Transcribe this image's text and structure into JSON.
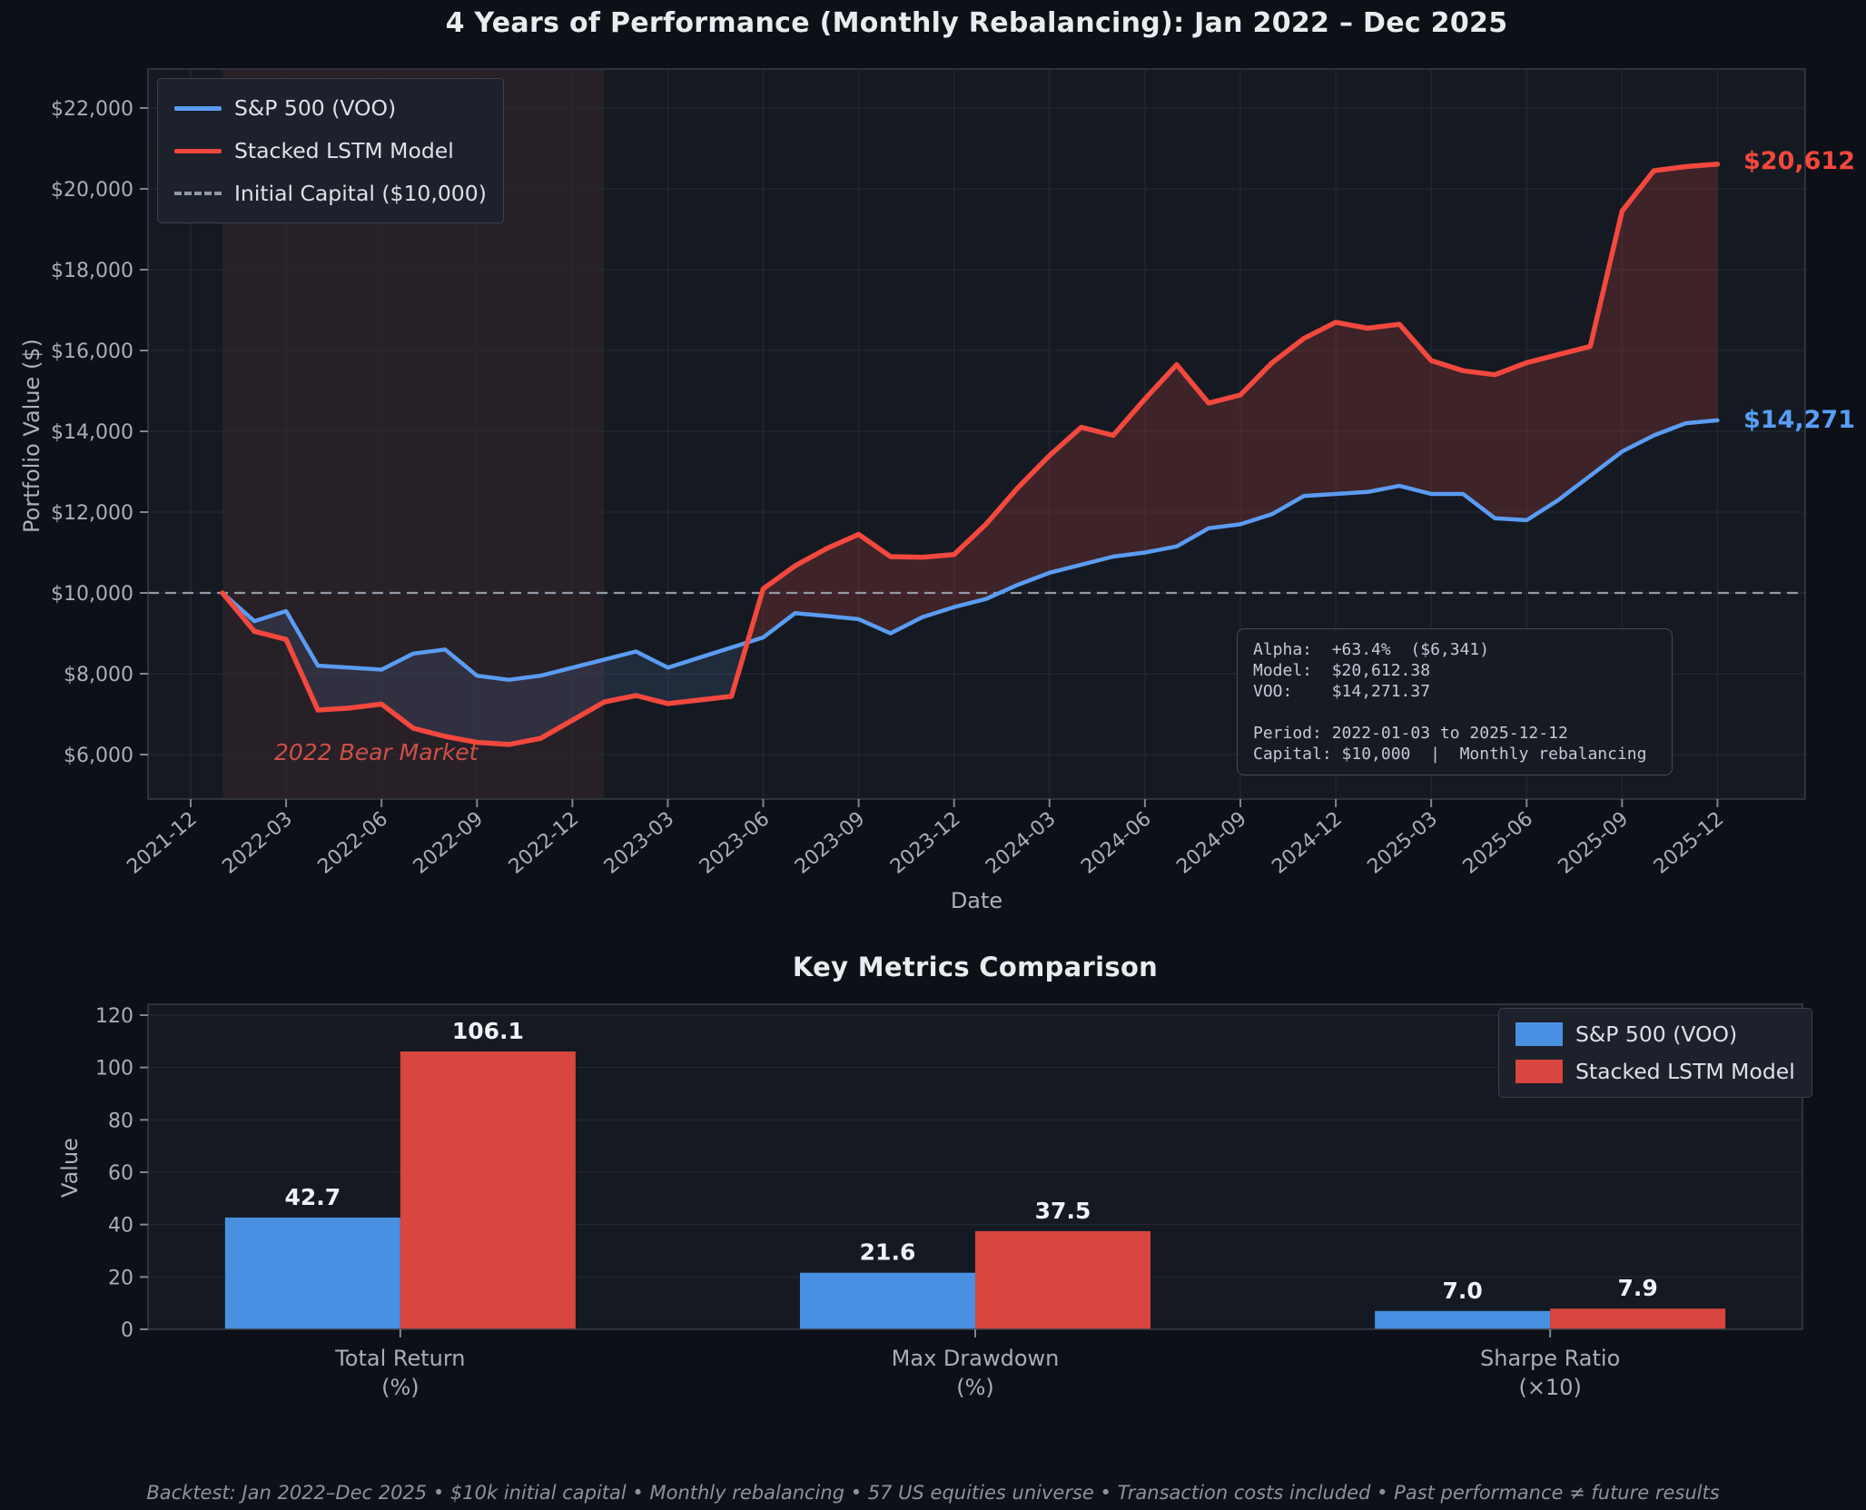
{
  "ui": {
    "performance": {
      "title": "4 Years of Performance (Monthly Rebalancing): Jan 2022 – Dec 2025",
      "xlabel": "Date",
      "ylabel": "Portfolio Value ($)",
      "end_label_model": "$20,612",
      "end_label_voo": "$14,271",
      "annotation": "2022 Bear Market",
      "info_box": {
        "lines": [
          "Alpha:  +63.4%  ($6,341)",
          "Model:  $20,612.38",
          "VOO:    $14,271.37",
          "",
          "Period: 2022-01-03 to 2025-12-12",
          "Capital: $10,000  |  Monthly rebalancing"
        ]
      }
    },
    "metrics": {
      "title": "Key Metrics Comparison",
      "ylabel": "Value"
    },
    "footer": "Backtest: Jan 2022–Dec 2025 • $10k initial capital • Monthly rebalancing • 57 US equities universe • Transaction costs included • Past performance ≠ future results"
  },
  "colors": {
    "figure_bg": "#0d1016",
    "axes_bg": "#151a22",
    "grid": "#252a34",
    "spine": "#363c47",
    "tick_text": "#a8aeb8",
    "voo_blue": "#5b9cf3",
    "model_red": "#f2483e",
    "bar_blue": "#4a90e2",
    "bar_red": "#d9453f",
    "reference_gray": "#939aa6",
    "end_label_red": "#f4483d",
    "end_label_blue": "#57a0f5",
    "fill_model_above": "rgba(232,74,66,0.20)",
    "fill_voo_above": "rgba(101,143,214,0.15)",
    "bear_band": "rgba(219,88,88,0.10)",
    "value_label": "#f0f2f5"
  },
  "chart_data": [
    {
      "type": "line",
      "title": "4 Years of Performance (Monthly Rebalancing): Jan 2022 – Dec 2025",
      "xlabel": "Date",
      "ylabel": "Portfolio Value ($)",
      "x": [
        "2022-01",
        "2022-02",
        "2022-03",
        "2022-04",
        "2022-05",
        "2022-06",
        "2022-07",
        "2022-08",
        "2022-09",
        "2022-10",
        "2022-11",
        "2022-12",
        "2023-01",
        "2023-02",
        "2023-03",
        "2023-04",
        "2023-05",
        "2023-06",
        "2023-07",
        "2023-08",
        "2023-09",
        "2023-10",
        "2023-11",
        "2023-12",
        "2024-01",
        "2024-02",
        "2024-03",
        "2024-04",
        "2024-05",
        "2024-06",
        "2024-07",
        "2024-08",
        "2024-09",
        "2024-10",
        "2024-11",
        "2024-12",
        "2025-01",
        "2025-02",
        "2025-03",
        "2025-04",
        "2025-05",
        "2025-06",
        "2025-07",
        "2025-08",
        "2025-09",
        "2025-10",
        "2025-11",
        "2025-12"
      ],
      "series": [
        {
          "name": "S&P 500 (VOO)",
          "color": "#5b9cf3",
          "final_value": 14271.37,
          "values": [
            10000,
            9300,
            9550,
            8200,
            8150,
            8100,
            8500,
            8600,
            7950,
            7850,
            7950,
            8150,
            8350,
            8550,
            8150,
            8400,
            8650,
            8900,
            9500,
            9430,
            9350,
            9000,
            9400,
            9650,
            9850,
            10200,
            10500,
            10700,
            10900,
            11000,
            11150,
            11600,
            11700,
            11950,
            12400,
            12450,
            12500,
            12650,
            12450,
            12450,
            11850,
            11800,
            12300,
            12900,
            13500,
            13900,
            14200,
            14271
          ]
        },
        {
          "name": "Stacked LSTM Model",
          "color": "#f2483e",
          "final_value": 20612.38,
          "values": [
            10000,
            9050,
            8850,
            7100,
            7150,
            7250,
            6650,
            6450,
            6300,
            6250,
            6400,
            6850,
            7300,
            7460,
            7260,
            7350,
            7440,
            10100,
            10670,
            11100,
            11450,
            10900,
            10880,
            10950,
            11700,
            12600,
            13400,
            14100,
            13900,
            14800,
            15650,
            14700,
            14900,
            15700,
            16300,
            16700,
            16550,
            16650,
            15750,
            15500,
            15400,
            15700,
            15900,
            16100,
            19450,
            20450,
            20550,
            20612
          ]
        }
      ],
      "reference_line": {
        "label": "Initial Capital ($10,000)",
        "value": 10000
      },
      "shaded_region": {
        "label": "2022 Bear Market",
        "from": "2022-01",
        "to": "2023-01"
      },
      "x_ticks": [
        "2021-12",
        "2022-03",
        "2022-06",
        "2022-09",
        "2022-12",
        "2023-03",
        "2023-06",
        "2023-09",
        "2023-12",
        "2024-03",
        "2024-06",
        "2024-09",
        "2024-12",
        "2025-03",
        "2025-06",
        "2025-09",
        "2025-12"
      ],
      "y_ticks": [
        6000,
        8000,
        10000,
        12000,
        14000,
        16000,
        18000,
        20000,
        22000
      ],
      "y_tick_labels": [
        "$6,000",
        "$8,000",
        "$10,000",
        "$12,000",
        "$14,000",
        "$16,000",
        "$18,000",
        "$20,000",
        "$22,000"
      ],
      "ylim": [
        4900,
        22970
      ],
      "grid": true,
      "legend_position": "upper left",
      "alpha_stats": {
        "alpha_pct": "+63.4%",
        "alpha_dollars": "$6,341",
        "model_final": "$20,612.38",
        "voo_final": "$14,271.37",
        "period": "2022-01-03 to 2025-12-12",
        "capital": "$10,000",
        "rebalancing": "Monthly"
      }
    },
    {
      "type": "bar",
      "title": "Key Metrics Comparison",
      "ylabel": "Value",
      "categories": [
        "Total Return\n(%)",
        "Max Drawdown\n(%)",
        "Sharpe Ratio\n(×10)"
      ],
      "series": [
        {
          "name": "S&P 500 (VOO)",
          "color": "#4a90e2",
          "values": [
            42.7,
            21.6,
            7.0
          ]
        },
        {
          "name": "Stacked LSTM Model",
          "color": "#d9453f",
          "values": [
            106.1,
            37.5,
            7.9
          ]
        }
      ],
      "value_labels": [
        [
          "42.7",
          "21.6",
          "7.0"
        ],
        [
          "106.1",
          "37.5",
          "7.9"
        ]
      ],
      "y_ticks": [
        0,
        20,
        40,
        60,
        80,
        100,
        120
      ],
      "ylim": [
        0,
        124
      ],
      "grid": true,
      "legend_position": "upper right"
    }
  ]
}
